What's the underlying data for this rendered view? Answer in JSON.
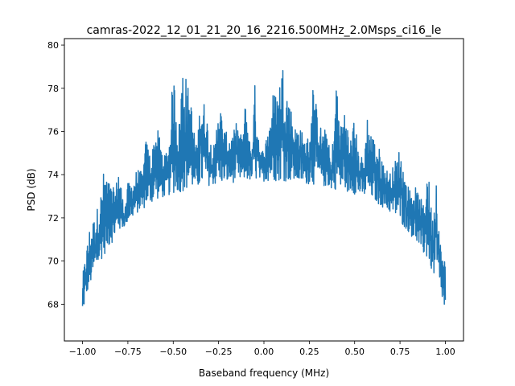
{
  "chart_data": {
    "type": "line",
    "title": "camras-2022_12_01_21_20_16_2216.500MHz_2.0Msps_ci16_le",
    "xlabel": "Baseband frequency (MHz)",
    "ylabel": "PSD (dB)",
    "xlim": [
      -1.1,
      1.1
    ],
    "ylim": [
      66.3,
      80.3
    ],
    "xticks": [
      {
        "value": -1.0,
        "label": "−1.00"
      },
      {
        "value": -0.75,
        "label": "−0.75"
      },
      {
        "value": -0.5,
        "label": "−0.50"
      },
      {
        "value": -0.25,
        "label": "−0.25"
      },
      {
        "value": 0.0,
        "label": "0.00"
      },
      {
        "value": 0.25,
        "label": "0.25"
      },
      {
        "value": 0.5,
        "label": "0.50"
      },
      {
        "value": 0.75,
        "label": "0.75"
      },
      {
        "value": 1.0,
        "label": "1.00"
      }
    ],
    "yticks": [
      {
        "value": 68,
        "label": "68"
      },
      {
        "value": 70,
        "label": "70"
      },
      {
        "value": 72,
        "label": "72"
      },
      {
        "value": 74,
        "label": "74"
      },
      {
        "value": 76,
        "label": "76"
      },
      {
        "value": 78,
        "label": "78"
      },
      {
        "value": 80,
        "label": "80"
      }
    ],
    "grid": false,
    "legend": "none",
    "series": [
      {
        "color": "#1f77b4",
        "floor": {
          "x": [
            -1.0,
            -0.99,
            -0.97,
            -0.95,
            -0.9,
            -0.85,
            -0.8,
            -0.75,
            -0.7,
            -0.65,
            -0.6,
            -0.5,
            -0.4,
            -0.3,
            -0.2,
            -0.1,
            0.0,
            0.1,
            0.2,
            0.3,
            0.4,
            0.5,
            0.6,
            0.65,
            0.7,
            0.75,
            0.8,
            0.85,
            0.9,
            0.95,
            0.97,
            0.99,
            1.0
          ],
          "y": [
            67.0,
            68.0,
            68.6,
            69.0,
            70.0,
            70.7,
            71.3,
            71.8,
            72.2,
            72.5,
            72.8,
            73.1,
            73.3,
            73.5,
            73.6,
            73.7,
            73.7,
            73.7,
            73.6,
            73.5,
            73.3,
            73.1,
            72.8,
            72.5,
            72.2,
            71.8,
            71.3,
            70.7,
            70.0,
            69.0,
            68.6,
            68.0,
            67.0
          ]
        },
        "peaks": {
          "x": [
            -1.0,
            -0.995,
            -0.98,
            -0.96,
            -0.93,
            -0.9,
            -0.88,
            -0.85,
            -0.82,
            -0.8,
            -0.77,
            -0.75,
            -0.72,
            -0.7,
            -0.67,
            -0.65,
            -0.62,
            -0.6,
            -0.58,
            -0.55,
            -0.52,
            -0.5,
            -0.47,
            -0.45,
            -0.43,
            -0.4,
            -0.37,
            -0.35,
            -0.32,
            -0.3,
            -0.27,
            -0.25,
            -0.22,
            -0.2,
            -0.17,
            -0.15,
            -0.12,
            -0.1,
            -0.07,
            -0.05,
            -0.02,
            0.0,
            0.03,
            0.05,
            0.08,
            0.1,
            0.12,
            0.15,
            0.17,
            0.2,
            0.22,
            0.25,
            0.27,
            0.3,
            0.32,
            0.35,
            0.37,
            0.4,
            0.42,
            0.45,
            0.47,
            0.5,
            0.52,
            0.55,
            0.57,
            0.6,
            0.62,
            0.65,
            0.67,
            0.7,
            0.72,
            0.75,
            0.78,
            0.8,
            0.83,
            0.85,
            0.88,
            0.9,
            0.93,
            0.95,
            0.97,
            0.99,
            1.0
          ],
          "y": [
            69.8,
            69.5,
            70.5,
            71.6,
            72.1,
            73.1,
            74.4,
            73.6,
            73.3,
            74.5,
            72.3,
            73.6,
            73.7,
            74.3,
            74.1,
            75.7,
            74.8,
            76.2,
            76.0,
            74.8,
            75.8,
            79.0,
            76.0,
            79.3,
            78.6,
            77.3,
            75.2,
            77.8,
            77.2,
            75.7,
            75.3,
            77.8,
            76.1,
            75.9,
            75.9,
            76.5,
            75.7,
            77.6,
            74.9,
            78.2,
            75.1,
            75.2,
            76.5,
            77.8,
            77.9,
            79.4,
            78.3,
            77.1,
            76.2,
            76.4,
            75.6,
            75.8,
            78.2,
            76.7,
            76.0,
            76.2,
            74.3,
            78.5,
            76.1,
            77.5,
            75.4,
            76.7,
            75.1,
            74.7,
            76.8,
            75.8,
            75.6,
            74.9,
            74.3,
            74.1,
            74.6,
            75.3,
            73.8,
            73.4,
            73.5,
            73.2,
            72.6,
            74.6,
            72.0,
            74.4,
            71.0,
            70.1,
            70.1
          ]
        }
      }
    ]
  }
}
